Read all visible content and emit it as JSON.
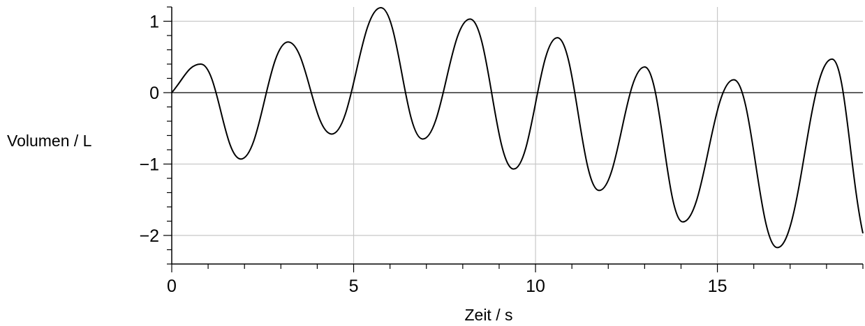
{
  "chart_data": {
    "type": "line",
    "title": "",
    "xlabel": "Zeit / s",
    "ylabel": "Volumen / L",
    "xlim": [
      0,
      19
    ],
    "ylim": [
      -2.4,
      1.2
    ],
    "x_ticks": [
      0,
      5,
      10,
      15
    ],
    "y_ticks": [
      1,
      0,
      -1,
      -2
    ],
    "x_tick_labels": [
      "0",
      "5",
      "10",
      "15"
    ],
    "y_tick_labels": [
      "1",
      "0",
      "−1",
      "−2"
    ],
    "grid": true,
    "legend": "none",
    "series": [
      {
        "x": [
          0,
          0.8,
          1.9,
          3.2,
          4.4,
          5.75,
          6.9,
          8.2,
          9.4,
          10.6,
          11.75,
          13.0,
          14.05,
          15.45,
          16.65,
          18.15,
          19.0
        ],
        "y": [
          0,
          0.4,
          -0.93,
          0.71,
          -0.58,
          1.19,
          -0.65,
          1.03,
          -1.07,
          0.77,
          -1.37,
          0.36,
          -1.81,
          0.18,
          -2.17,
          0.47,
          -1.97
        ]
      }
    ],
    "colors": {
      "line": "#000000",
      "grid": "#c8c8c8",
      "axis": "#000000"
    }
  }
}
